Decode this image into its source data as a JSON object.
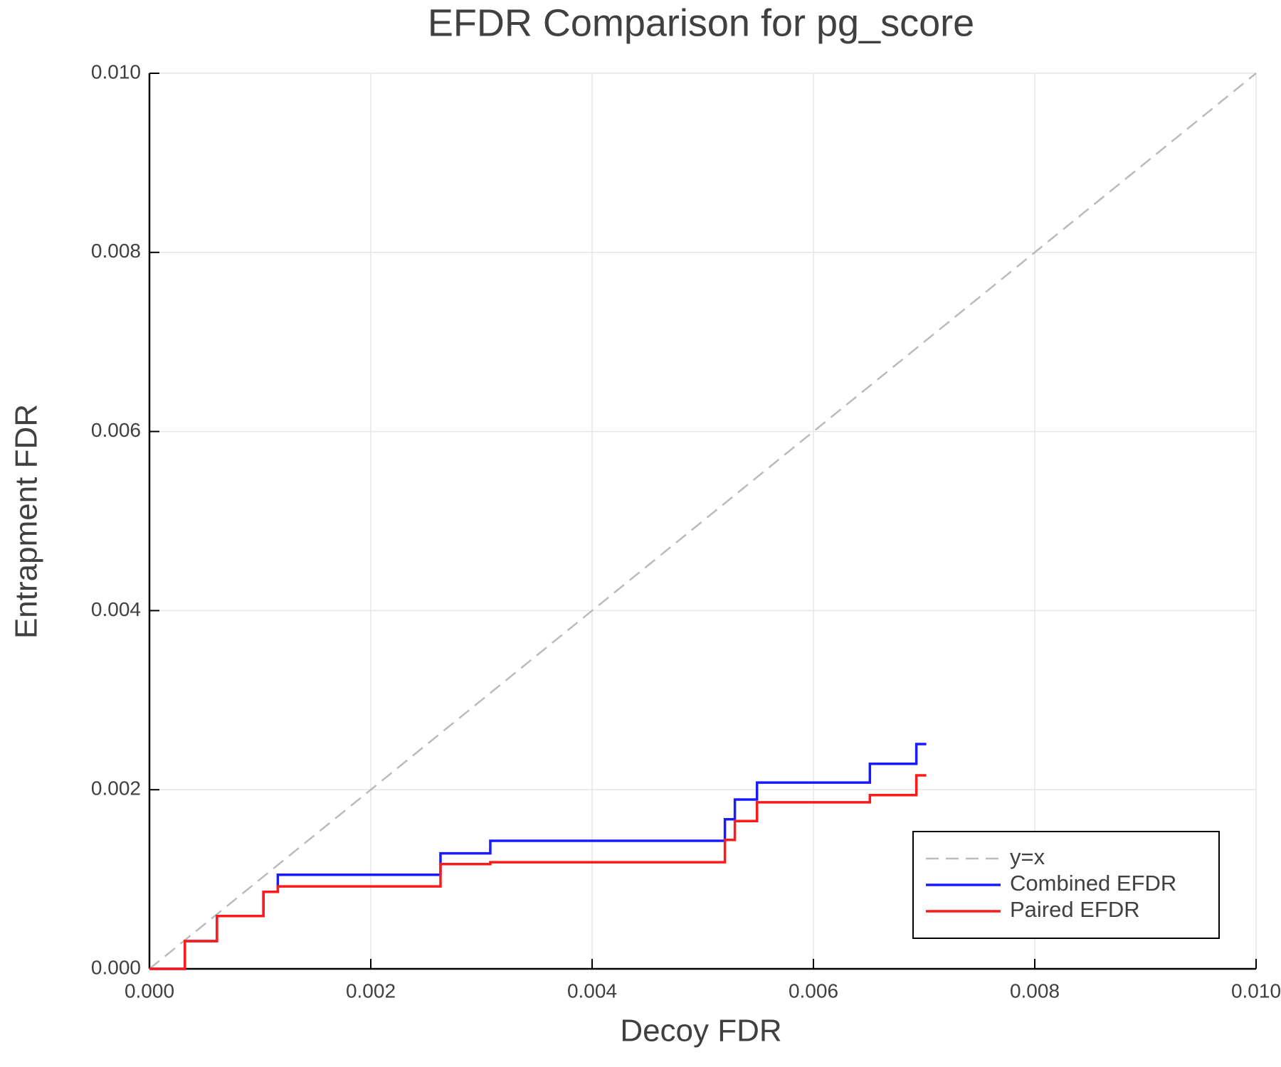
{
  "chart_data": {
    "type": "line",
    "title": "EFDR Comparison for pg_score",
    "x_label": "Decoy FDR",
    "y_label": "Entrapment FDR",
    "xlim": [
      0,
      0.01
    ],
    "ylim": [
      0,
      0.01
    ],
    "xticks": [
      {
        "value": 0,
        "label": "0.000"
      },
      {
        "value": 0.002,
        "label": "0.002"
      },
      {
        "value": 0.004,
        "label": "0.004"
      },
      {
        "value": 0.006,
        "label": "0.006"
      },
      {
        "value": 0.008,
        "label": "0.008"
      },
      {
        "value": 0.01,
        "label": "0.010"
      }
    ],
    "yticks": [
      {
        "value": 0,
        "label": "0.000"
      },
      {
        "value": 0.002,
        "label": "0.002"
      },
      {
        "value": 0.004,
        "label": "0.004"
      },
      {
        "value": 0.006,
        "label": "0.006"
      },
      {
        "value": 0.008,
        "label": "0.008"
      },
      {
        "value": 0.01,
        "label": "0.010"
      }
    ],
    "grid": true,
    "legend": "bottom-right",
    "series": [
      {
        "name": "y=x",
        "color": "#bbbbbb",
        "dashed": true,
        "x": [
          0,
          0.01
        ],
        "values": [
          0,
          0.01
        ]
      },
      {
        "name": "Combined EFDR",
        "color": "#1a1aff",
        "x": [
          0,
          0.00032,
          0.00032,
          0.00061,
          0.00061,
          0.00103,
          0.00103,
          0.00116,
          0.00116,
          0.00263,
          0.00263,
          0.00308,
          0.00308,
          0.0052,
          0.0052,
          0.00529,
          0.00529,
          0.00549,
          0.00549,
          0.00651,
          0.00651,
          0.00693,
          0.00693,
          0.00702
        ],
        "values": [
          0,
          0,
          0.00031,
          0.00031,
          0.00059,
          0.00059,
          0.00086,
          0.00086,
          0.00105,
          0.00105,
          0.00129,
          0.00129,
          0.00143,
          0.00143,
          0.00167,
          0.00167,
          0.00189,
          0.00189,
          0.00208,
          0.00208,
          0.00229,
          0.00229,
          0.00251,
          0.00251
        ]
      },
      {
        "name": "Paired EFDR",
        "color": "#ff1a1a",
        "x": [
          0,
          0.00032,
          0.00032,
          0.00061,
          0.00061,
          0.00103,
          0.00103,
          0.00116,
          0.00116,
          0.00263,
          0.00263,
          0.00308,
          0.00308,
          0.0052,
          0.0052,
          0.00529,
          0.00529,
          0.00549,
          0.00549,
          0.00651,
          0.00651,
          0.00693,
          0.00693,
          0.00702
        ],
        "values": [
          0,
          0,
          0.00031,
          0.00031,
          0.00059,
          0.00059,
          0.00086,
          0.00086,
          0.00092,
          0.00092,
          0.00117,
          0.00117,
          0.00119,
          0.00119,
          0.00144,
          0.00144,
          0.00165,
          0.00165,
          0.00186,
          0.00186,
          0.00194,
          0.00194,
          0.00216,
          0.00216
        ]
      }
    ]
  }
}
